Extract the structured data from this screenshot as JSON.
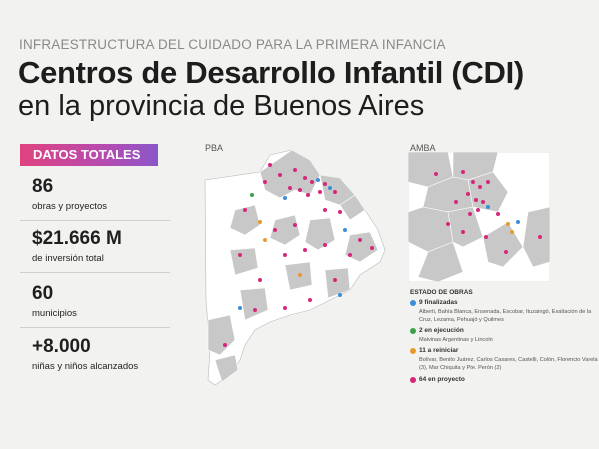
{
  "header": {
    "kicker": "INFRAESTRUCTURA DEL CUIDADO PARA LA PRIMERA INFANCIA",
    "title": "Centros de Desarrollo Infantil (CDI)",
    "subtitle": "en la provincia de Buenos Aires"
  },
  "stats": {
    "heading": "DATOS TOTALES",
    "items": [
      {
        "value": "86",
        "label": "obras y proyectos"
      },
      {
        "value": "$21.666 M",
        "label": "de inversión total"
      },
      {
        "value": "60",
        "label": "municipios"
      },
      {
        "value": "+8.000",
        "label": "niñas y niños alcanzados"
      }
    ]
  },
  "maps": {
    "pba_label": "PBA",
    "amba_label": "AMBA"
  },
  "legend": {
    "title": "ESTADO DE OBRAS",
    "items": [
      {
        "color": "#3a8fd6",
        "head": "9 finalizadas",
        "desc": "Alberti, Bahía Blanca, Ensenada, Escobar, Ituzaingó, Exaltación de la Cruz, Lezama, Pehuajó y Quilmes"
      },
      {
        "color": "#3aa14a",
        "head": "2 en ejecución",
        "desc": "Malvinas Argentinas y Lincoln"
      },
      {
        "color": "#e89a2e",
        "head": "11 a reiniciar",
        "desc": "Bolívar, Benito Juárez, Carlos Casares, Castelli, Colón, Florencio Varela (3), Mar Chiquita y Pte. Perón (2)"
      },
      {
        "color": "#d6287a",
        "head": "64 en proyecto",
        "desc": ""
      }
    ]
  },
  "colors": {
    "accent_pink": "#e0427f",
    "accent_purple": "#8a57c9",
    "map_gray": "#c8c8c8",
    "map_light": "#ffffff"
  }
}
